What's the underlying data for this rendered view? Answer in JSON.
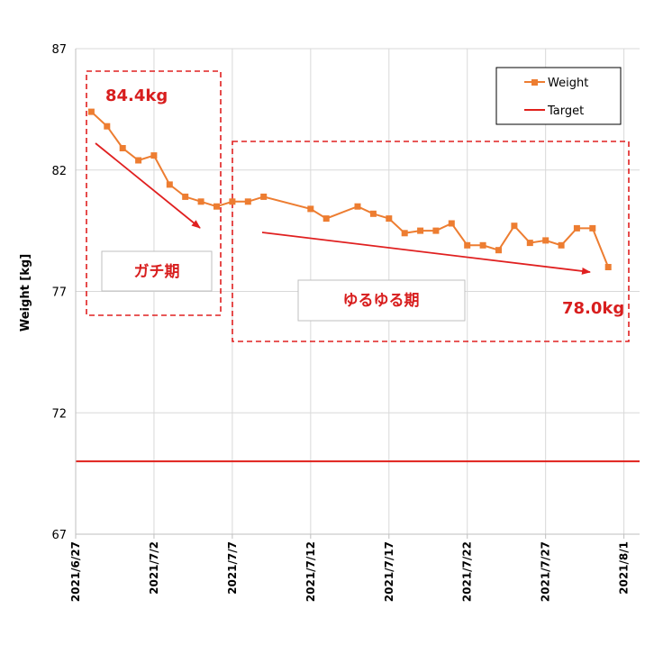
{
  "chart_data": {
    "type": "line",
    "ylabel": "Weight [kg]",
    "ylim": [
      67,
      87
    ],
    "yticks": [
      "67",
      "72",
      "77",
      "82",
      "87"
    ],
    "xlim": [
      "2021/6/27",
      "2021/8/2"
    ],
    "xticks": [
      "2021/6/27",
      "2021/7/2",
      "2021/7/7",
      "2021/7/12",
      "2021/7/17",
      "2021/7/22",
      "2021/7/27",
      "2021/8/1"
    ],
    "grid": true,
    "legend_position": "top-right",
    "series": [
      {
        "name": "Weight",
        "color": "#ed7d31",
        "marker": "square",
        "points": [
          [
            "2021/6/28",
            84.4
          ],
          [
            "2021/6/29",
            83.8
          ],
          [
            "2021/6/30",
            82.9
          ],
          [
            "2021/7/1",
            82.4
          ],
          [
            "2021/7/2",
            82.6
          ],
          [
            "2021/7/3",
            81.4
          ],
          [
            "2021/7/4",
            80.9
          ],
          [
            "2021/7/5",
            80.7
          ],
          [
            "2021/7/6",
            80.5
          ],
          [
            "2021/7/7",
            80.7
          ],
          [
            "2021/7/8",
            80.7
          ],
          [
            "2021/7/9",
            80.9
          ],
          [
            "2021/7/12",
            80.4
          ],
          [
            "2021/7/13",
            80.0
          ],
          [
            "2021/7/15",
            80.5
          ],
          [
            "2021/7/16",
            80.2
          ],
          [
            "2021/7/17",
            80.0
          ],
          [
            "2021/7/18",
            79.4
          ],
          [
            "2021/7/19",
            79.5
          ],
          [
            "2021/7/20",
            79.5
          ],
          [
            "2021/7/21",
            79.8
          ],
          [
            "2021/7/22",
            78.9
          ],
          [
            "2021/7/23",
            78.9
          ],
          [
            "2021/7/24",
            78.7
          ],
          [
            "2021/7/25",
            79.7
          ],
          [
            "2021/7/26",
            79.0
          ],
          [
            "2021/7/27",
            79.1
          ],
          [
            "2021/7/28",
            78.9
          ],
          [
            "2021/7/29",
            79.6
          ],
          [
            "2021/7/30",
            79.6
          ],
          [
            "2021/7/31",
            78.0
          ]
        ]
      },
      {
        "name": "Target",
        "color": "#e0201b",
        "constant": 70
      }
    ],
    "annotations": {
      "start_value": "84.4kg",
      "end_value": "78.0kg",
      "phase1_label": "ガチ期",
      "phase2_label": "ゆるゆる期"
    }
  }
}
